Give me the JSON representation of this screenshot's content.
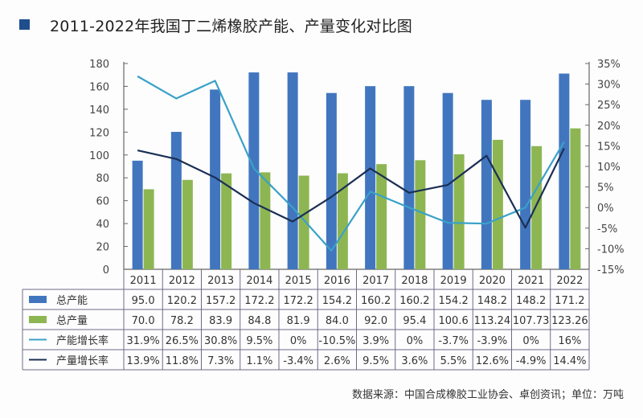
{
  "title": "2011-2022年我国丁二烯橡胶产能、产量变化对比图",
  "source": "数据来源：中国合成橡胶工业协会、卓创资讯；单位：万吨",
  "colors": {
    "capacity": "#4176bf",
    "output": "#8db652",
    "capacity_growth": "#3aa1c8",
    "output_growth": "#1b2f55",
    "title_square": "#1f4e8c"
  },
  "chart_data": {
    "type": "bar+line",
    "title": "2011-2022年我国丁二烯橡胶产能、产量变化对比图",
    "categories": [
      "2011",
      "2012",
      "2013",
      "2014",
      "2015",
      "2016",
      "2017",
      "2018",
      "2019",
      "2020",
      "2021",
      "2022"
    ],
    "y_left": {
      "ylim": [
        0,
        180
      ],
      "ticks": [
        "0",
        "20",
        "40",
        "60",
        "80",
        "100",
        "120",
        "140",
        "160",
        "180"
      ]
    },
    "y_right": {
      "ylim": [
        -15,
        35
      ],
      "ticks": [
        "-15%",
        "-10%",
        "-5%",
        "0%",
        "5%",
        "10%",
        "15%",
        "20%",
        "25%",
        "30%",
        "35%"
      ]
    },
    "series": [
      {
        "name": "总产能",
        "type": "bar",
        "axis": "left",
        "values": [
          95.0,
          120.2,
          157.2,
          172.2,
          172.2,
          154.2,
          160.2,
          160.2,
          154.2,
          148.2,
          148.2,
          171.2
        ],
        "labels": [
          "95.0",
          "120.2",
          "157.2",
          "172.2",
          "172.2",
          "154.2",
          "160.2",
          "160.2",
          "154.2",
          "148.2",
          "148.2",
          "171.2"
        ]
      },
      {
        "name": "总产量",
        "type": "bar",
        "axis": "left",
        "values": [
          70.0,
          78.2,
          83.9,
          84.8,
          81.9,
          84.0,
          92.0,
          95.4,
          100.6,
          113.24,
          107.73,
          123.26
        ],
        "labels": [
          "70.0",
          "78.2",
          "83.9",
          "84.8",
          "81.9",
          "84.0",
          "92.0",
          "95.4",
          "100.6",
          "113.24",
          "107.73",
          "123.26"
        ]
      },
      {
        "name": "产能增长率",
        "type": "line",
        "axis": "right",
        "values": [
          31.9,
          26.5,
          30.8,
          9.5,
          0,
          -10.5,
          3.9,
          0,
          -3.7,
          -3.9,
          0,
          16
        ],
        "labels": [
          "31.9%",
          "26.5%",
          "30.8%",
          "9.5%",
          "0%",
          "-10.5%",
          "3.9%",
          "0%",
          "-3.7%",
          "-3.9%",
          "0%",
          "16%"
        ]
      },
      {
        "name": "产量增长率",
        "type": "line",
        "axis": "right",
        "values": [
          13.9,
          11.8,
          7.3,
          1.1,
          -3.4,
          2.6,
          9.5,
          3.6,
          5.5,
          12.6,
          -4.9,
          14.4
        ],
        "labels": [
          "13.9%",
          "11.8%",
          "7.3%",
          "1.1%",
          "-3.4%",
          "2.6%",
          "9.5%",
          "3.6%",
          "5.5%",
          "12.6%",
          "-4.9%",
          "14.4%"
        ]
      }
    ]
  }
}
